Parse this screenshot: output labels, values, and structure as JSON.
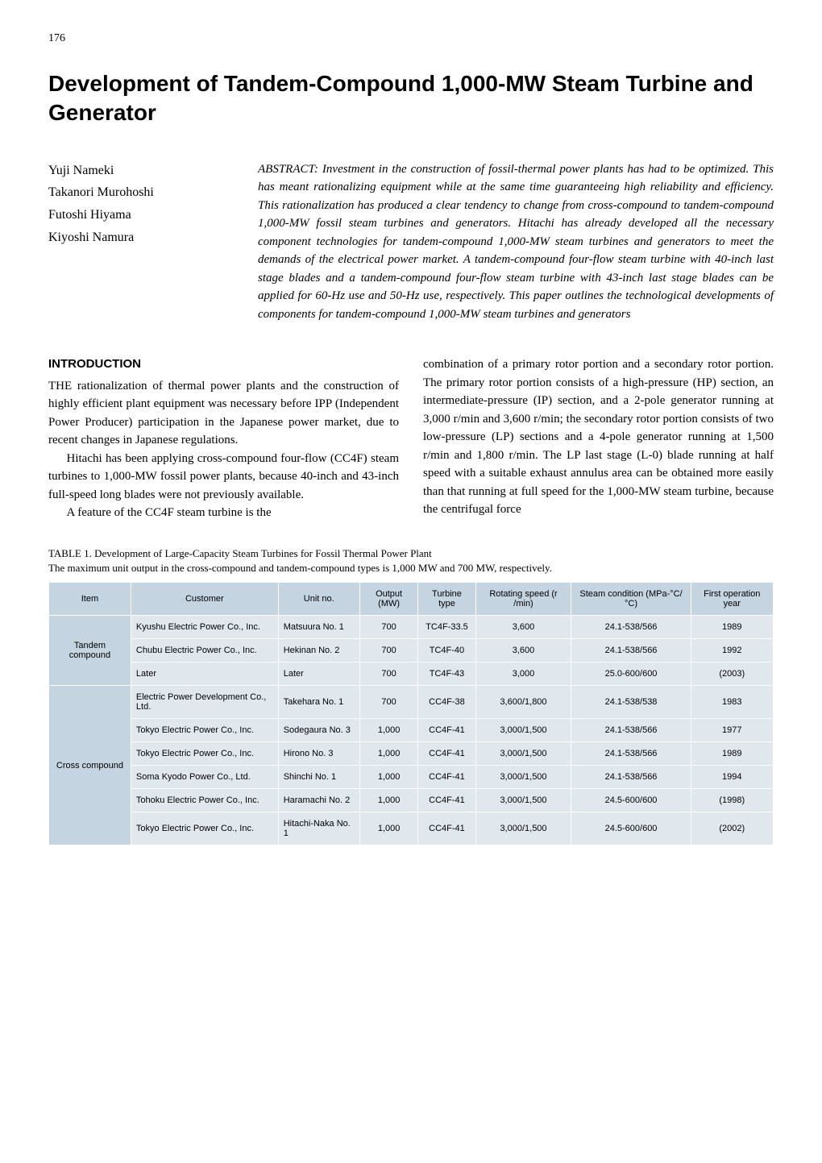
{
  "page_number": "176",
  "title": "Development of Tandem-Compound 1,000-MW Steam Turbine and Generator",
  "authors": [
    "Yuji Nameki",
    "Takanori Murohoshi",
    "Futoshi Hiyama",
    "Kiyoshi Namura"
  ],
  "abstract": "ABSTRACT: Investment in the construction of fossil-thermal power plants has had to be optimized. This has meant rationalizing equipment while at the same time guaranteeing high reliability and efficiency. This rationalization has produced a clear tendency to change from cross-compound to tandem-compound 1,000-MW fossil steam turbines and generators. Hitachi has already developed all the necessary component technologies for tandem-compound 1,000-MW steam turbines and generators to meet the demands of the electrical power market. A tandem-compound four-flow steam turbine with 40-inch last stage blades and a tandem-compound four-flow steam turbine with 43-inch last stage blades can be applied for 60-Hz use and 50-Hz use, respectively. This paper outlines the technological developments of components for tandem-compound 1,000-MW steam turbines and generators",
  "section_heading": "INTRODUCTION",
  "left_column": {
    "p1": "THE rationalization of thermal power plants and the construction of highly efficient plant equipment was necessary before IPP (Independent Power Producer) participation in the Japanese power market, due to recent changes in Japanese regulations.",
    "p2": "Hitachi has been applying cross-compound four-flow (CC4F) steam turbines to 1,000-MW fossil power plants, because 40-inch and 43-inch full-speed long blades were not previously available.",
    "p3": "A feature of the CC4F steam turbine is the"
  },
  "right_column": {
    "p1": "combination of a primary rotor portion and a secondary rotor portion.  The primary rotor portion consists of a high-pressure (HP) section, an intermediate-pressure (IP) section, and a 2-pole generator running at 3,000 r/min and 3,600 r/min; the secondary rotor portion consists of two low-pressure (LP) sections and a 4-pole generator running at 1,500 r/min and 1,800 r/min. The LP last stage (L-0) blade running at half speed with a suitable exhaust annulus area can be obtained more easily than that running at full speed for the 1,000-MW steam turbine, because the centrifugal force"
  },
  "table_caption": {
    "label": "TABLE 1.",
    "title": "Development of Large-Capacity Steam Turbines for Fossil Thermal Power Plant",
    "subtitle": "The maximum unit output in the cross-compound and tandem-compound types is 1,000 MW and 700 MW, respectively."
  },
  "table": {
    "header_bg": "#c4d4e0",
    "cell_bg": "#e0e8ee",
    "border_color": "#ffffff",
    "columns": [
      "Item",
      "Customer",
      "Unit no.",
      "Output (MW)",
      "Turbine type",
      "Rotating speed (r /min)",
      "Steam condition (MPa-°C/ °C)",
      "First operation year"
    ],
    "groups": [
      {
        "item": "Tandem compound",
        "rows": [
          [
            "Kyushu Electric Power Co., Inc.",
            "Matsuura No. 1",
            "700",
            "TC4F-33.5",
            "3,600",
            "24.1-538/566",
            "1989"
          ],
          [
            "Chubu Electric Power Co., Inc.",
            "Hekinan No. 2",
            "700",
            "TC4F-40",
            "3,600",
            "24.1-538/566",
            "1992"
          ],
          [
            "Later",
            "Later",
            "700",
            "TC4F-43",
            "3,000",
            "25.0-600/600",
            "(2003)"
          ]
        ]
      },
      {
        "item": "Cross compound",
        "rows": [
          [
            "Electric Power Development Co., Ltd.",
            "Takehara No. 1",
            "700",
            "CC4F-38",
            "3,600/1,800",
            "24.1-538/538",
            "1983"
          ],
          [
            "Tokyo Electric Power Co., Inc.",
            "Sodegaura No. 3",
            "1,000",
            "CC4F-41",
            "3,000/1,500",
            "24.1-538/566",
            "1977"
          ],
          [
            "Tokyo  Electric Power Co., Inc.",
            "Hirono No. 3",
            "1,000",
            "CC4F-41",
            "3,000/1,500",
            "24.1-538/566",
            "1989"
          ],
          [
            "Soma Kyodo  Power Co., Ltd.",
            "Shinchi No. 1",
            "1,000",
            "CC4F-41",
            "3,000/1,500",
            "24.1-538/566",
            "1994"
          ],
          [
            "Tohoku Electric Power Co., Inc.",
            "Haramachi No. 2",
            "1,000",
            "CC4F-41",
            "3,000/1,500",
            "24.5-600/600",
            "(1998)"
          ],
          [
            "Tokyo Electric Power Co., Inc.",
            "Hitachi-Naka No. 1",
            "1,000",
            "CC4F-41",
            "3,000/1,500",
            "24.5-600/600",
            "(2002)"
          ]
        ]
      }
    ]
  }
}
